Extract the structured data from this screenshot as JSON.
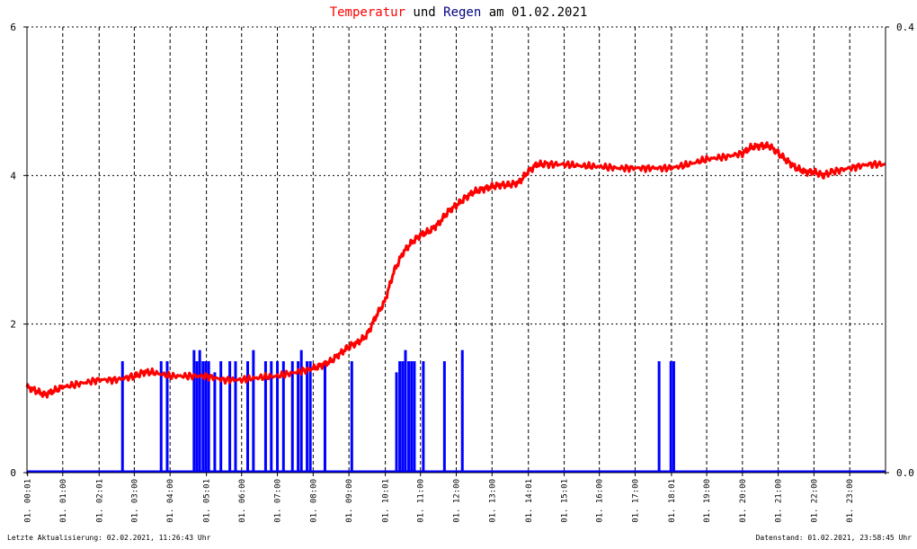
{
  "chart_data": {
    "type": "line",
    "title": {
      "parts": [
        {
          "text": "Temperatur",
          "color": "#ff0000"
        },
        {
          "text": " und ",
          "color": "#000000"
        },
        {
          "text": "Regen",
          "color": "#000080"
        },
        {
          "text": " am 01.02.2021",
          "color": "#000000"
        }
      ]
    },
    "colors": {
      "temperature": "#ff0000",
      "rain": "#0000ff",
      "grid": "#000000",
      "background": "#ffffff"
    },
    "x_axis": {
      "unit": "time",
      "range": [
        "00:01",
        "23:58"
      ],
      "tick_labels": [
        "01. 00:01",
        "01. 01:00",
        "01. 02:01",
        "01. 03:00",
        "01. 04:00",
        "01. 05:01",
        "01. 06:00",
        "01. 07:00",
        "01. 08:00",
        "01. 09:00",
        "01. 10:01",
        "01. 11:00",
        "01. 12:00",
        "01. 13:00",
        "01. 14:01",
        "01. 15:01",
        "01. 16:00",
        "01. 17:00",
        "01. 18:01",
        "01. 19:00",
        "01. 20:00",
        "01. 21:00",
        "01. 22:00",
        "01. 23:00"
      ],
      "tick_hours": [
        0.017,
        1.0,
        2.017,
        3.0,
        4.0,
        5.017,
        6.0,
        7.0,
        8.0,
        9.0,
        10.017,
        11.0,
        12.0,
        13.0,
        14.017,
        15.017,
        16.0,
        17.0,
        18.017,
        19.0,
        20.0,
        21.0,
        22.0,
        23.0
      ]
    },
    "y_left": {
      "ylim": [
        0,
        6
      ],
      "tick_labels": [
        "0",
        "2",
        "4",
        "6"
      ],
      "tick_values": [
        0,
        2,
        4,
        6
      ]
    },
    "y_right": {
      "ylim": [
        0,
        0.4
      ],
      "tick_labels": [
        "0.0",
        "0.4"
      ],
      "tick_values": [
        0,
        0.4
      ]
    },
    "grid": true,
    "series": [
      {
        "key": "temperature",
        "axis": "left",
        "color": "#ff0000",
        "x_hours": [
          0,
          0.25,
          0.5,
          0.75,
          1,
          1.5,
          2,
          2.5,
          3,
          3.25,
          3.5,
          4,
          4.5,
          5,
          5.5,
          6,
          6.5,
          7,
          7.5,
          8,
          8.25,
          8.5,
          8.75,
          9,
          9.25,
          9.5,
          9.75,
          10,
          10.25,
          10.5,
          10.75,
          11,
          11.25,
          11.5,
          11.75,
          12,
          12.25,
          12.5,
          12.75,
          13,
          13.25,
          13.5,
          13.75,
          14,
          14.25,
          14.5,
          15,
          15.5,
          16,
          16.5,
          17,
          17.5,
          18,
          18.5,
          19,
          19.5,
          20,
          20.25,
          20.5,
          20.75,
          21,
          21.25,
          21.5,
          21.75,
          22,
          22.25,
          22.5,
          23,
          23.5,
          24
        ],
        "y": [
          1.15,
          1.1,
          1.05,
          1.1,
          1.15,
          1.2,
          1.25,
          1.25,
          1.3,
          1.35,
          1.35,
          1.3,
          1.3,
          1.3,
          1.25,
          1.25,
          1.28,
          1.3,
          1.35,
          1.4,
          1.45,
          1.5,
          1.6,
          1.7,
          1.75,
          1.85,
          2.1,
          2.3,
          2.7,
          2.95,
          3.1,
          3.2,
          3.25,
          3.35,
          3.5,
          3.6,
          3.7,
          3.78,
          3.82,
          3.85,
          3.87,
          3.88,
          3.9,
          4.05,
          4.15,
          4.15,
          4.15,
          4.13,
          4.12,
          4.1,
          4.1,
          4.1,
          4.1,
          4.15,
          4.22,
          4.25,
          4.3,
          4.38,
          4.4,
          4.4,
          4.3,
          4.2,
          4.1,
          4.05,
          4.05,
          4.0,
          4.05,
          4.1,
          4.15,
          4.15
        ]
      },
      {
        "key": "rain",
        "axis": "right",
        "color": "#0000ff",
        "type": "bar",
        "x_hours": [
          2.67,
          3.75,
          3.92,
          4.67,
          4.75,
          4.83,
          4.92,
          5.0,
          5.08,
          5.25,
          5.42,
          5.67,
          5.83,
          6.17,
          6.33,
          6.67,
          6.83,
          7.0,
          7.17,
          7.42,
          7.58,
          7.67,
          7.83,
          7.92,
          8.33,
          9.08,
          10.33,
          10.42,
          10.5,
          10.58,
          10.67,
          10.75,
          10.83,
          11.08,
          11.67,
          12.17,
          17.67,
          18.0,
          18.08
        ],
        "values": [
          0.1,
          0.1,
          0.1,
          0.11,
          0.1,
          0.11,
          0.1,
          0.1,
          0.1,
          0.09,
          0.1,
          0.1,
          0.1,
          0.1,
          0.11,
          0.1,
          0.1,
          0.1,
          0.1,
          0.1,
          0.1,
          0.11,
          0.1,
          0.1,
          0.1,
          0.1,
          0.09,
          0.1,
          0.1,
          0.11,
          0.1,
          0.1,
          0.1,
          0.1,
          0.1,
          0.11,
          0.1,
          0.1,
          0.1
        ]
      }
    ]
  },
  "footer": {
    "left": "Letzte Aktualisierung: 02.02.2021, 11:26:43 Uhr",
    "right": "Datenstand: 01.02.2021, 23:58:45 Uhr"
  }
}
